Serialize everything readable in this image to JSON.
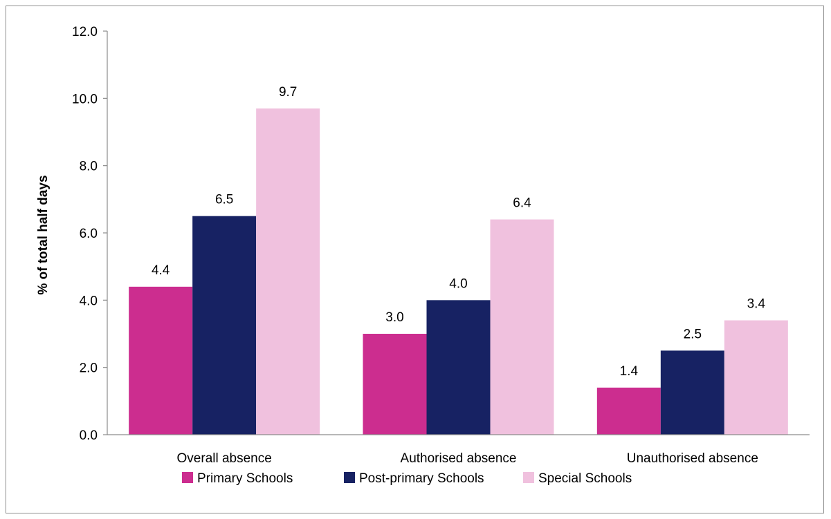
{
  "chart_data": {
    "type": "bar",
    "title": "",
    "xlabel": "",
    "ylabel": "% of total half days",
    "categories": [
      "Overall absence",
      "Authorised absence",
      "Unauthorised absence"
    ],
    "series": [
      {
        "name": "Primary Schools",
        "color": "#cc2d8f",
        "values": [
          4.4,
          3.0,
          1.4
        ],
        "labels": [
          "4.4",
          "3.0",
          "1.4"
        ]
      },
      {
        "name": "Post-primary Schools",
        "color": "#172263",
        "values": [
          6.5,
          4.0,
          2.5
        ],
        "labels": [
          "6.5",
          "4.0",
          "2.5"
        ]
      },
      {
        "name": "Special Schools",
        "color": "#f0c1de",
        "values": [
          9.7,
          6.4,
          3.4
        ],
        "labels": [
          "9.7",
          "6.4",
          "3.4"
        ]
      }
    ],
    "ylim": [
      0,
      12
    ],
    "yticks": [
      "0.0",
      "2.0",
      "4.0",
      "6.0",
      "8.0",
      "10.0",
      "12.0"
    ],
    "grid": false,
    "legend_position": "bottom"
  }
}
